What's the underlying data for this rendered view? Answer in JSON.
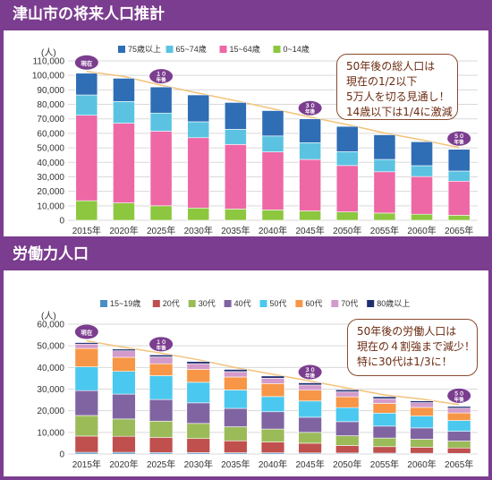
{
  "sections": {
    "population_title": "津山市の将来人口推計",
    "labor_title": "労働力人口"
  },
  "callouts": {
    "population": [
      "50年後の総人口は",
      "現在の1/2以下",
      "5万人を切る見通し！",
      "14歳以下は1/4に激減"
    ],
    "labor": [
      "50年後の労働人口は",
      "現在の４割強まで減少！",
      "特に30代は1/3に！"
    ]
  },
  "colors": {
    "header_band": "#7b3d8f",
    "badge": "#7b3d8f",
    "trend_line": "#f3c27a"
  },
  "chart_data": [
    {
      "type": "bar",
      "stacked": true,
      "unit_label": "(人)",
      "categories": [
        "2015年",
        "2020年",
        "2025年",
        "2030年",
        "2035年",
        "2040年",
        "2045年",
        "2050年",
        "2055年",
        "2060年",
        "2065年"
      ],
      "ylim": [
        0,
        110000
      ],
      "yticks": [
        "0",
        "10,000",
        "20,000",
        "30,000",
        "40,000",
        "50,000",
        "60,000",
        "70,000",
        "80,000",
        "90,000",
        "100,000",
        "110,000"
      ],
      "grid": true,
      "legend_position": "top",
      "badges": [
        {
          "index": 0,
          "lines": [
            "現在"
          ]
        },
        {
          "index": 2,
          "lines": [
            "１０",
            "年後"
          ]
        },
        {
          "index": 6,
          "lines": [
            "３０",
            "年後"
          ]
        },
        {
          "index": 10,
          "lines": [
            "５０",
            "年後"
          ]
        }
      ],
      "series": [
        {
          "name": "0~14歳",
          "color": "#8dc63f",
          "values": [
            13500,
            12000,
            10000,
            8500,
            7800,
            7200,
            6500,
            5800,
            5000,
            4200,
            3500
          ]
        },
        {
          "name": "15~64歳",
          "color": "#ee68a6",
          "values": [
            59000,
            55000,
            51500,
            48500,
            44500,
            40000,
            35500,
            32000,
            28500,
            26000,
            23500
          ]
        },
        {
          "name": "65~74歳",
          "color": "#5bc3e1",
          "values": [
            14000,
            15000,
            12500,
            11000,
            10500,
            11000,
            11500,
            9500,
            8500,
            7500,
            7000
          ]
        },
        {
          "name": "75歳以上",
          "color": "#2f6db5",
          "values": [
            15000,
            16000,
            18000,
            18500,
            18500,
            17500,
            16500,
            17500,
            17000,
            16500,
            15000
          ]
        }
      ]
    },
    {
      "type": "bar",
      "stacked": true,
      "unit_label": "(人)",
      "categories": [
        "2015年",
        "2020年",
        "2025年",
        "2030年",
        "2035年",
        "2040年",
        "2045年",
        "2050年",
        "2055年",
        "2060年",
        "2065年"
      ],
      "ylim": [
        0,
        60000
      ],
      "yticks": [
        "0",
        "10,000",
        "20,000",
        "30,000",
        "40,000",
        "50,000",
        "60,000"
      ],
      "grid": true,
      "legend_position": "top",
      "badges": [
        {
          "index": 0,
          "lines": [
            "現在"
          ]
        },
        {
          "index": 2,
          "lines": [
            "１０",
            "年後"
          ]
        },
        {
          "index": 6,
          "lines": [
            "３０",
            "年後"
          ]
        },
        {
          "index": 10,
          "lines": [
            "５０",
            "年後"
          ]
        }
      ],
      "series": [
        {
          "name": "15~19歳",
          "color": "#4a8fc4",
          "values": [
            800,
            800,
            700,
            650,
            600,
            550,
            500,
            450,
            400,
            350,
            300
          ]
        },
        {
          "name": "20代",
          "color": "#c0504d",
          "values": [
            7500,
            7400,
            7000,
            6500,
            5500,
            5000,
            4500,
            3500,
            3000,
            2800,
            2500
          ]
        },
        {
          "name": "30代",
          "color": "#9bbb59",
          "values": [
            9500,
            8000,
            7500,
            7000,
            6500,
            6000,
            5000,
            4500,
            4000,
            3700,
            3200
          ]
        },
        {
          "name": "40代",
          "color": "#8064a2",
          "values": [
            11500,
            11500,
            10000,
            9500,
            8500,
            8000,
            7000,
            6500,
            5500,
            5200,
            4500
          ]
        },
        {
          "name": "50代",
          "color": "#4bc8ef",
          "values": [
            11000,
            10500,
            11000,
            9500,
            8500,
            7000,
            7500,
            6500,
            6000,
            5500,
            5000
          ]
        },
        {
          "name": "60代",
          "color": "#f79646",
          "values": [
            8500,
            6500,
            5500,
            6000,
            6000,
            6000,
            5000,
            5000,
            4500,
            4000,
            3500
          ]
        },
        {
          "name": "70代",
          "color": "#d39bcb",
          "values": [
            2000,
            3000,
            3200,
            2600,
            2500,
            2500,
            2400,
            2300,
            2200,
            2200,
            2200
          ]
        },
        {
          "name": "80歳以上",
          "color": "#1f2f70",
          "values": [
            700,
            800,
            900,
            1000,
            1000,
            1000,
            1000,
            900,
            900,
            800,
            800
          ]
        }
      ]
    }
  ]
}
